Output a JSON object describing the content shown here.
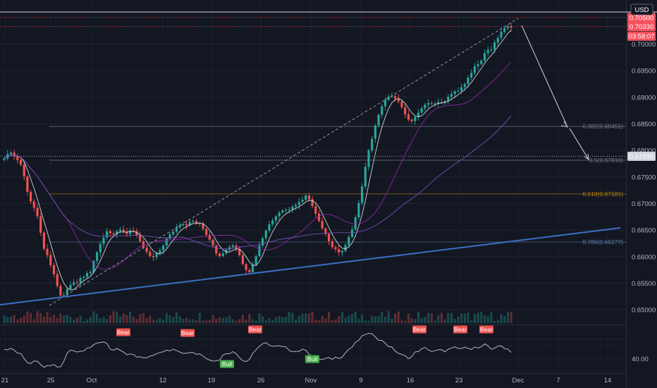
{
  "chart_data": {
    "type": "candlestick",
    "currency": "USD",
    "price_axis": {
      "ticks": [
        "0.70000",
        "0.69500",
        "0.69000",
        "0.68500",
        "0.68000",
        "0.67500",
        "0.67000",
        "0.66500",
        "0.66000",
        "0.65500",
        "0.65000"
      ],
      "range": [
        0.6475,
        0.7083
      ]
    },
    "time_axis": {
      "labels": [
        "21",
        "25",
        "Oct",
        "12",
        "19",
        "26",
        "Nov",
        "9",
        "16",
        "23",
        "Dec",
        "7",
        "14"
      ]
    },
    "price_tags": [
      {
        "label": "0.70500",
        "price": 0.705,
        "color": "#f7525f"
      },
      {
        "label": "0.70330",
        "price": 0.7033,
        "color": "#f7525f"
      },
      {
        "label": "03:58:07",
        "price": 0.7015,
        "color": "#f7525f"
      },
      {
        "label": "0.67890",
        "price": 0.6789,
        "color": "#d1d4dc"
      }
    ],
    "fib_levels": [
      {
        "ratio": "0.382",
        "label": "0.382(0.68451)",
        "price": 0.68451,
        "color": "#787b86"
      },
      {
        "ratio": "0.5",
        "label": "0.5(0.67816)",
        "price": 0.67816,
        "color": "#787b86"
      },
      {
        "ratio": "0.618",
        "label": "0.618(0.67181)",
        "price": 0.67181,
        "color": "#b8860b"
      },
      {
        "ratio": "0.786",
        "label": "0.786(0.66277)",
        "price": 0.66277,
        "color": "#5b7fa6"
      }
    ],
    "closes": [
      0.6785,
      0.6793,
      0.6796,
      0.679,
      0.6782,
      0.6773,
      0.6751,
      0.6722,
      0.6704,
      0.6692,
      0.6676,
      0.6645,
      0.6615,
      0.6603,
      0.6584,
      0.6567,
      0.6545,
      0.6527,
      0.6528,
      0.6539,
      0.6547,
      0.6552,
      0.6551,
      0.656,
      0.6562,
      0.6569,
      0.6571,
      0.6592,
      0.6608,
      0.6624,
      0.6636,
      0.6648,
      0.6644,
      0.6642,
      0.6648,
      0.6651,
      0.6647,
      0.6643,
      0.6649,
      0.6648,
      0.664,
      0.6629,
      0.6617,
      0.6609,
      0.6601,
      0.6599,
      0.6606,
      0.6612,
      0.6621,
      0.6634,
      0.6642,
      0.6647,
      0.6655,
      0.6659,
      0.6661,
      0.6659,
      0.6665,
      0.6667,
      0.6662,
      0.6663,
      0.6652,
      0.6641,
      0.6632,
      0.6621,
      0.6606,
      0.6601,
      0.6606,
      0.6613,
      0.6618,
      0.6621,
      0.6615,
      0.6603,
      0.6586,
      0.6575,
      0.6571,
      0.6585,
      0.6601,
      0.6621,
      0.6635,
      0.6649,
      0.6661,
      0.6668,
      0.6676,
      0.6683,
      0.6687,
      0.6688,
      0.6689,
      0.6694,
      0.6697,
      0.6703,
      0.6707,
      0.6715,
      0.6708,
      0.6695,
      0.6681,
      0.6667,
      0.6653,
      0.6643,
      0.6629,
      0.6618,
      0.6614,
      0.6608,
      0.6611,
      0.6622,
      0.6637,
      0.6651,
      0.6674,
      0.6701,
      0.6732,
      0.6769,
      0.68,
      0.6822,
      0.6847,
      0.6867,
      0.6883,
      0.6895,
      0.6901,
      0.6902,
      0.6898,
      0.6892,
      0.6881,
      0.6868,
      0.6858,
      0.6855,
      0.6863,
      0.6871,
      0.6879,
      0.6886,
      0.6889,
      0.6888,
      0.6888,
      0.6891,
      0.689,
      0.6893,
      0.6901,
      0.6906,
      0.6911,
      0.6912,
      0.6919,
      0.6925,
      0.6937,
      0.6946,
      0.6958,
      0.6962,
      0.6969,
      0.6983,
      0.6989,
      0.699,
      0.7003,
      0.7012,
      0.7023,
      0.703,
      0.7034,
      0.7031
    ],
    "indicator": {
      "ticks": [
        "40.00"
      ],
      "signals": [
        {
          "label": "Bear",
          "type": "bear"
        },
        {
          "label": "Bear",
          "type": "bear"
        },
        {
          "label": "Bear",
          "type": "bear"
        },
        {
          "label": "Bear",
          "type": "bear"
        },
        {
          "label": "Bear",
          "type": "bear"
        },
        {
          "label": "Bear",
          "type": "bear"
        },
        {
          "label": "Bull",
          "type": "bull"
        },
        {
          "label": "Bull",
          "type": "bull"
        }
      ]
    },
    "colors": {
      "up": "#26a69a",
      "down": "#ef5350",
      "trendline": "#3d6fc4",
      "sma_fast": "#d1d4dc",
      "sma_mid": "#9c27b0",
      "sma_slow": "#7e57c2",
      "background": "#131722"
    }
  }
}
